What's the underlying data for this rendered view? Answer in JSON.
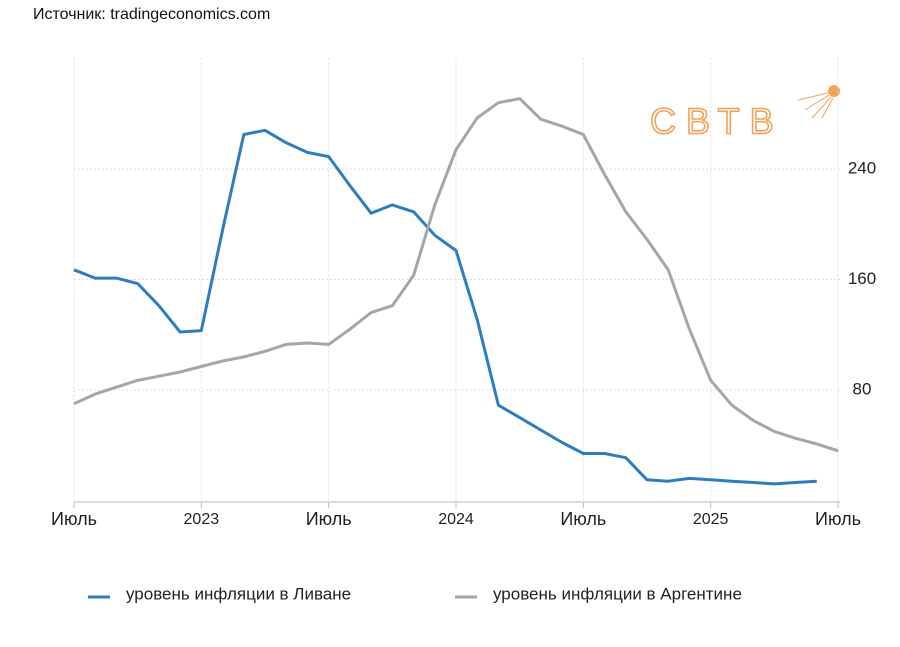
{
  "chart_data": {
    "type": "line",
    "source": "Источник: tradingeconomics.com",
    "watermark": "СВТВ",
    "x": [
      "2022-07",
      "2022-08",
      "2022-09",
      "2022-10",
      "2022-11",
      "2022-12",
      "2023-01",
      "2023-02",
      "2023-03",
      "2023-04",
      "2023-05",
      "2023-06",
      "2023-07",
      "2023-08",
      "2023-09",
      "2023-10",
      "2023-11",
      "2023-12",
      "2024-01",
      "2024-02",
      "2024-03",
      "2024-04",
      "2024-05",
      "2024-06",
      "2024-07",
      "2024-08",
      "2024-09",
      "2024-10",
      "2024-11",
      "2024-12",
      "2025-01",
      "2025-02",
      "2025-03",
      "2025-04",
      "2025-05",
      "2025-06",
      "2025-07"
    ],
    "series": [
      {
        "name": "уровень инфляции в Ливане",
        "color": "#2e7ebf",
        "values": [
          167,
          161,
          161,
          157,
          141,
          122,
          123,
          196,
          265,
          268,
          259,
          252,
          249,
          228,
          208,
          214,
          209,
          192,
          181,
          131,
          69,
          60,
          51,
          42,
          34,
          34,
          31,
          15,
          14,
          16,
          15,
          14,
          13,
          12,
          13,
          14,
          null
        ]
      },
      {
        "name": "уровень инфляции в Аргентине",
        "color": "#a6a6a6",
        "values": [
          70,
          77,
          82,
          87,
          90,
          93,
          97,
          101,
          104,
          108,
          113,
          114,
          113,
          124,
          136,
          141,
          163,
          214,
          254,
          277,
          288,
          291,
          276,
          271,
          265,
          236,
          209,
          189,
          167,
          124,
          87,
          69,
          58,
          50,
          45,
          41,
          36
        ]
      }
    ],
    "xticks": [
      {
        "value": "2022-07",
        "label": "Июль"
      },
      {
        "value": "2023-01",
        "label": "2023"
      },
      {
        "value": "2023-07",
        "label": "Июль"
      },
      {
        "value": "2024-01",
        "label": "2024"
      },
      {
        "value": "2024-07",
        "label": "Июль"
      },
      {
        "value": "2025-01",
        "label": "2025"
      },
      {
        "value": "2025-07",
        "label": "Июль"
      }
    ],
    "ylim": [
      0,
      320
    ],
    "yticks": [
      80,
      160,
      240
    ],
    "grid": true
  }
}
